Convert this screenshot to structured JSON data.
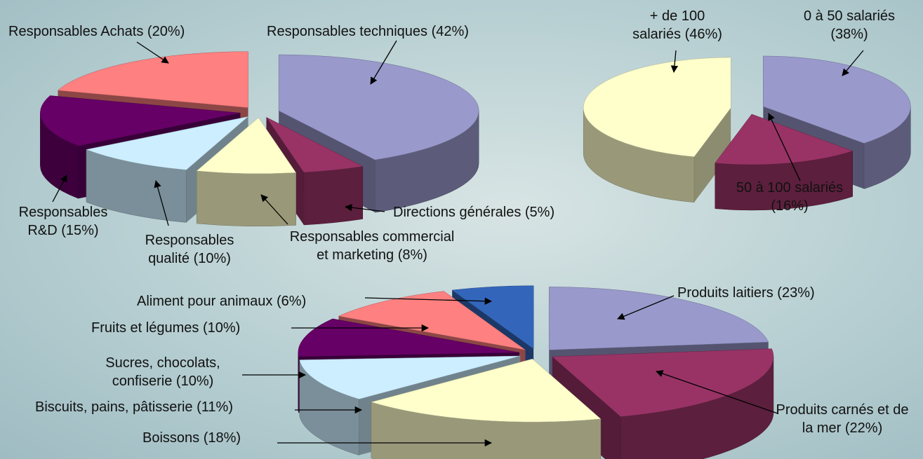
{
  "chart_data": [
    {
      "type": "pie",
      "categories": [
        "Responsables techniques",
        "Directions générales",
        "Responsables commercial et marketing",
        "Responsables qualité",
        "Responsables R&D",
        "Responsables Achats"
      ],
      "values": [
        42,
        5,
        8,
        10,
        15,
        20
      ],
      "value_labels": [
        "(42%)",
        "(5%)",
        "(8%)",
        "(10%)",
        "(15%)",
        "(20%)"
      ],
      "colors": [
        "#9999cc",
        "#993366",
        "#ffffcc",
        "#cceeff",
        "#660066",
        "#ff8080"
      ]
    },
    {
      "type": "pie",
      "categories": [
        "0 à 50 salariés",
        "50 à 100 salariés",
        "+ de 100 salariés"
      ],
      "values": [
        38,
        16,
        46
      ],
      "value_labels": [
        "(38%)",
        "(16%)",
        "(46%)"
      ],
      "colors": [
        "#9999cc",
        "#993366",
        "#ffffcc"
      ]
    },
    {
      "type": "pie",
      "categories": [
        "Produits laitiers",
        "Produits carnés et de la mer",
        "Boissons",
        "Biscuits, pains, pâtisserie",
        "Sucres, chocolats, confiserie",
        "Fruits et légumes",
        "Aliment pour animaux"
      ],
      "values": [
        23,
        22,
        18,
        11,
        10,
        10,
        6
      ],
      "value_labels": [
        "(23%)",
        "(22%)",
        "(18%)",
        "(11%)",
        "(10%)",
        "(10%)",
        "(6%)"
      ],
      "colors": [
        "#9999cc",
        "#993366",
        "#ffffcc",
        "#cceeff",
        "#660066",
        "#ff8080",
        "#3366bb"
      ]
    }
  ]
}
